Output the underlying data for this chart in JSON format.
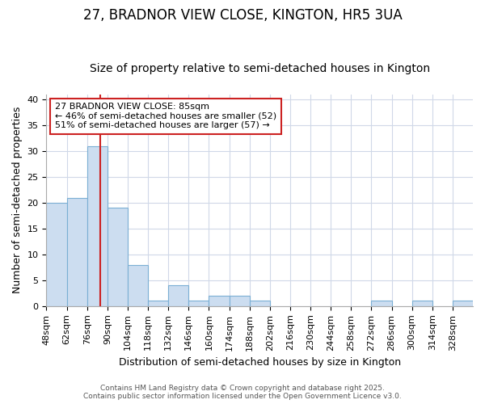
{
  "title": "27, BRADNOR VIEW CLOSE, KINGTON, HR5 3UA",
  "subtitle": "Size of property relative to semi-detached houses in Kington",
  "xlabel": "Distribution of semi-detached houses by size in Kington",
  "ylabel": "Number of semi-detached properties",
  "bin_labels": [
    "48sqm",
    "62sqm",
    "76sqm",
    "90sqm",
    "104sqm",
    "118sqm",
    "132sqm",
    "146sqm",
    "160sqm",
    "174sqm",
    "188sqm",
    "202sqm",
    "216sqm",
    "230sqm",
    "244sqm",
    "258sqm",
    "272sqm",
    "286sqm",
    "300sqm",
    "314sqm",
    "328sqm"
  ],
  "bin_edges": [
    48,
    62,
    76,
    90,
    104,
    118,
    132,
    146,
    160,
    174,
    188,
    202,
    216,
    230,
    244,
    258,
    272,
    286,
    300,
    314,
    328,
    342
  ],
  "counts": [
    20,
    21,
    31,
    19,
    8,
    1,
    4,
    1,
    2,
    2,
    1,
    0,
    0,
    0,
    0,
    0,
    1,
    0,
    1,
    0,
    1
  ],
  "bar_facecolor": "#ccddf0",
  "bar_edgecolor": "#7bafd4",
  "property_size": 85,
  "vline_color": "#cc2222",
  "annotation_text": "27 BRADNOR VIEW CLOSE: 85sqm\n← 46% of semi-detached houses are smaller (52)\n51% of semi-detached houses are larger (57) →",
  "annotation_box_edgecolor": "#cc2222",
  "annotation_box_facecolor": "#ffffff",
  "background_color": "#ffffff",
  "plot_background_color": "#ffffff",
  "grid_color": "#d0d8e8",
  "footer_text": "Contains HM Land Registry data © Crown copyright and database right 2025.\nContains public sector information licensed under the Open Government Licence v3.0.",
  "ylim": [
    0,
    41
  ],
  "yticks": [
    0,
    5,
    10,
    15,
    20,
    25,
    30,
    35,
    40
  ],
  "title_fontsize": 12,
  "subtitle_fontsize": 10,
  "axis_label_fontsize": 9,
  "tick_fontsize": 8,
  "annotation_fontsize": 8
}
